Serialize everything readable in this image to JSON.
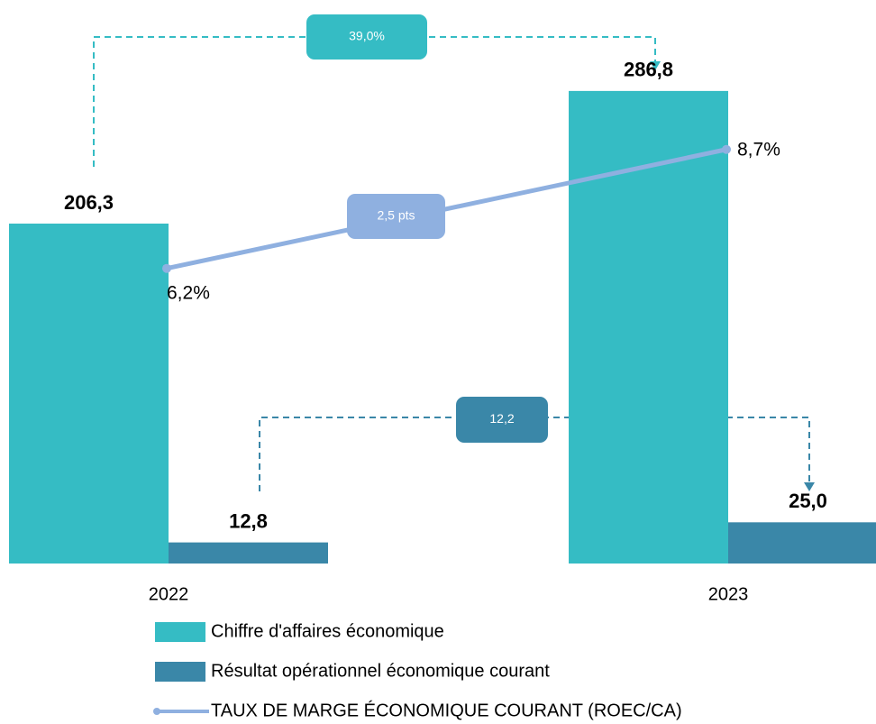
{
  "chart_data": {
    "type": "bar",
    "categories": [
      "2022",
      "2023"
    ],
    "series": [
      {
        "name": "Chiffre d'affaires économique",
        "color": "#35bcc4",
        "values": [
          206.3,
          286.8
        ],
        "value_labels": [
          "206,3",
          "286,8"
        ]
      },
      {
        "name": "Résultat opérationnel économique courant",
        "color": "#3a87a8",
        "values": [
          12.8,
          25.0
        ],
        "value_labels": [
          "12,8",
          "25,0"
        ]
      },
      {
        "name": "TAUX DE MARGE ÉCONOMIQUE COURANT (ROEC/CA)",
        "type": "line",
        "axis": "y2",
        "color": "#8fb0e0",
        "values": [
          6.2,
          8.7
        ],
        "value_labels": [
          "6,2%",
          "8,7%"
        ]
      }
    ],
    "ylim": [
      0,
      342
    ],
    "y2lim": [
      0,
      11.84
    ],
    "annotations": [
      "39,0%",
      "2,5 pts",
      "12,2"
    ]
  }
}
